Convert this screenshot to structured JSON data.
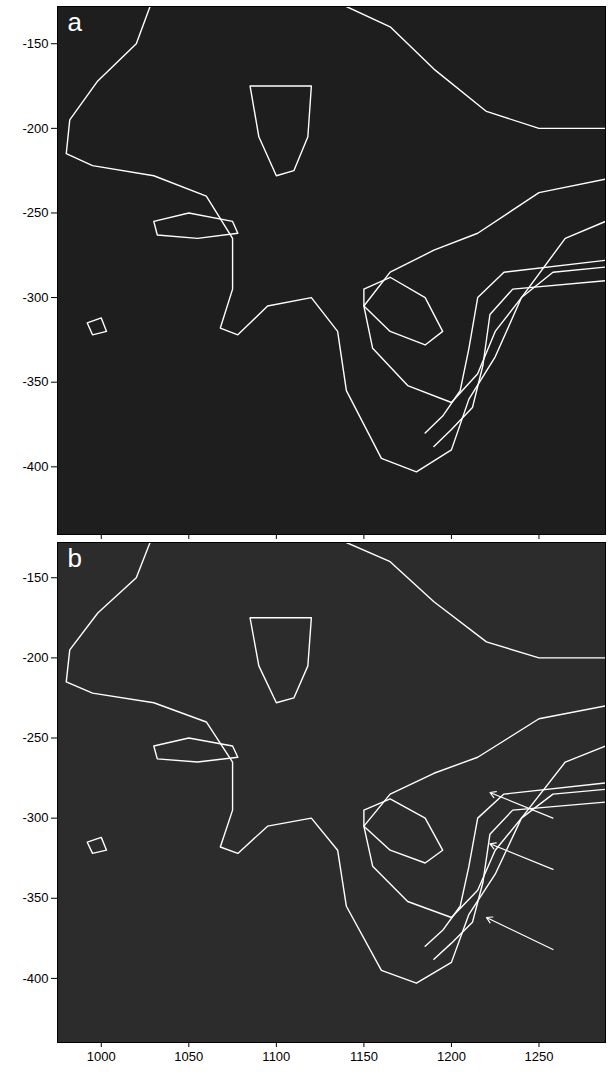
{
  "chart_data": [
    {
      "type": "contour",
      "label": "a",
      "xlim": [
        975,
        1288
      ],
      "xticks": [
        1000,
        1050,
        1100,
        1150,
        1200,
        1250
      ],
      "ylim": [
        -440,
        -128
      ],
      "yticks": [
        -400,
        -350,
        -300,
        -250,
        -200,
        -150
      ],
      "tick_labels": "y",
      "color": "white",
      "contours": [
        [
          [
            1030,
            -122
          ],
          [
            1020,
            -150
          ],
          [
            998,
            -172
          ],
          [
            982,
            -195
          ],
          [
            980,
            -215
          ],
          [
            995,
            -222
          ],
          [
            1030,
            -228
          ],
          [
            1060,
            -240
          ],
          [
            1075,
            -265
          ],
          [
            1075,
            -295
          ],
          [
            1068,
            -318
          ],
          [
            1078,
            -322
          ],
          [
            1095,
            -305
          ],
          [
            1120,
            -300
          ],
          [
            1135,
            -320
          ],
          [
            1140,
            -355
          ],
          [
            1160,
            -395
          ],
          [
            1180,
            -403
          ],
          [
            1200,
            -390
          ],
          [
            1210,
            -360
          ],
          [
            1225,
            -335
          ],
          [
            1240,
            -300
          ],
          [
            1265,
            -265
          ],
          [
            1288,
            -255
          ]
        ],
        [
          [
            1288,
            -230
          ],
          [
            1250,
            -238
          ],
          [
            1215,
            -262
          ],
          [
            1190,
            -272
          ],
          [
            1165,
            -285
          ],
          [
            1150,
            -305
          ],
          [
            1155,
            -330
          ],
          [
            1175,
            -352
          ],
          [
            1200,
            -362
          ],
          [
            1215,
            -345
          ],
          [
            1225,
            -320
          ],
          [
            1240,
            -300
          ],
          [
            1258,
            -285
          ],
          [
            1288,
            -282
          ]
        ],
        [
          [
            1150,
            -295
          ],
          [
            1165,
            -288
          ],
          [
            1185,
            -300
          ],
          [
            1195,
            -320
          ],
          [
            1185,
            -328
          ],
          [
            1165,
            -320
          ],
          [
            1150,
            -305
          ],
          [
            1150,
            -295
          ]
        ],
        [
          [
            1030,
            -255
          ],
          [
            1050,
            -250
          ],
          [
            1075,
            -255
          ],
          [
            1078,
            -262
          ],
          [
            1055,
            -265
          ],
          [
            1032,
            -263
          ],
          [
            1030,
            -255
          ]
        ],
        [
          [
            1085,
            -175
          ],
          [
            1120,
            -175
          ],
          [
            1118,
            -205
          ],
          [
            1110,
            -225
          ],
          [
            1100,
            -228
          ],
          [
            1090,
            -205
          ],
          [
            1085,
            -175
          ]
        ],
        [
          [
            992,
            -315
          ],
          [
            1000,
            -312
          ],
          [
            1003,
            -320
          ],
          [
            995,
            -322
          ],
          [
            992,
            -315
          ]
        ],
        [
          [
            1140,
            -128
          ],
          [
            1165,
            -140
          ],
          [
            1190,
            -165
          ],
          [
            1220,
            -190
          ],
          [
            1250,
            -200
          ],
          [
            1288,
            -200
          ]
        ],
        [
          [
            1288,
            -278
          ],
          [
            1230,
            -285
          ],
          [
            1215,
            -300
          ],
          [
            1210,
            -330
          ],
          [
            1205,
            -355
          ],
          [
            1195,
            -370
          ],
          [
            1185,
            -380
          ]
        ],
        [
          [
            1288,
            -290
          ],
          [
            1235,
            -295
          ],
          [
            1222,
            -310
          ],
          [
            1218,
            -340
          ],
          [
            1212,
            -365
          ],
          [
            1200,
            -378
          ],
          [
            1190,
            -388
          ]
        ]
      ]
    },
    {
      "type": "contour",
      "label": "b",
      "xlim": [
        975,
        1288
      ],
      "xticks": [
        1000,
        1050,
        1100,
        1150,
        1200,
        1250
      ],
      "ylim": [
        -440,
        -128
      ],
      "yticks": [
        -400,
        -350,
        -300,
        -250,
        -200,
        -150
      ],
      "tick_labels": true,
      "color": "white",
      "contours": [
        [
          [
            1030,
            -122
          ],
          [
            1020,
            -150
          ],
          [
            998,
            -172
          ],
          [
            982,
            -195
          ],
          [
            980,
            -215
          ],
          [
            995,
            -222
          ],
          [
            1030,
            -228
          ],
          [
            1060,
            -240
          ],
          [
            1075,
            -265
          ],
          [
            1075,
            -295
          ],
          [
            1068,
            -318
          ],
          [
            1078,
            -322
          ],
          [
            1095,
            -305
          ],
          [
            1120,
            -300
          ],
          [
            1135,
            -320
          ],
          [
            1140,
            -355
          ],
          [
            1160,
            -395
          ],
          [
            1180,
            -403
          ],
          [
            1200,
            -390
          ],
          [
            1210,
            -360
          ],
          [
            1225,
            -335
          ],
          [
            1240,
            -300
          ],
          [
            1265,
            -265
          ],
          [
            1288,
            -255
          ]
        ],
        [
          [
            1288,
            -230
          ],
          [
            1250,
            -238
          ],
          [
            1215,
            -262
          ],
          [
            1190,
            -272
          ],
          [
            1165,
            -285
          ],
          [
            1150,
            -305
          ],
          [
            1155,
            -330
          ],
          [
            1175,
            -352
          ],
          [
            1200,
            -362
          ],
          [
            1215,
            -345
          ],
          [
            1225,
            -320
          ],
          [
            1240,
            -300
          ],
          [
            1258,
            -285
          ],
          [
            1288,
            -282
          ]
        ],
        [
          [
            1150,
            -295
          ],
          [
            1165,
            -288
          ],
          [
            1185,
            -300
          ],
          [
            1195,
            -320
          ],
          [
            1185,
            -328
          ],
          [
            1165,
            -320
          ],
          [
            1150,
            -305
          ],
          [
            1150,
            -295
          ]
        ],
        [
          [
            1030,
            -255
          ],
          [
            1050,
            -250
          ],
          [
            1075,
            -255
          ],
          [
            1078,
            -262
          ],
          [
            1055,
            -265
          ],
          [
            1032,
            -263
          ],
          [
            1030,
            -255
          ]
        ],
        [
          [
            1085,
            -175
          ],
          [
            1120,
            -175
          ],
          [
            1118,
            -205
          ],
          [
            1110,
            -225
          ],
          [
            1100,
            -228
          ],
          [
            1090,
            -205
          ],
          [
            1085,
            -175
          ]
        ],
        [
          [
            992,
            -315
          ],
          [
            1000,
            -312
          ],
          [
            1003,
            -320
          ],
          [
            995,
            -322
          ],
          [
            992,
            -315
          ]
        ],
        [
          [
            1140,
            -128
          ],
          [
            1165,
            -140
          ],
          [
            1190,
            -165
          ],
          [
            1220,
            -190
          ],
          [
            1250,
            -200
          ],
          [
            1288,
            -200
          ]
        ],
        [
          [
            1288,
            -278
          ],
          [
            1230,
            -285
          ],
          [
            1215,
            -300
          ],
          [
            1210,
            -330
          ],
          [
            1205,
            -355
          ],
          [
            1195,
            -370
          ],
          [
            1185,
            -380
          ]
        ],
        [
          [
            1288,
            -290
          ],
          [
            1235,
            -295
          ],
          [
            1222,
            -310
          ],
          [
            1218,
            -340
          ],
          [
            1212,
            -365
          ],
          [
            1200,
            -378
          ],
          [
            1190,
            -388
          ]
        ]
      ],
      "arrows": [
        {
          "from": [
            1258,
            -300
          ],
          "to": [
            1222,
            -284
          ]
        },
        {
          "from": [
            1258,
            -332
          ],
          "to": [
            1222,
            -316
          ]
        },
        {
          "from": [
            1258,
            -382
          ],
          "to": [
            1220,
            -362
          ]
        }
      ]
    }
  ]
}
